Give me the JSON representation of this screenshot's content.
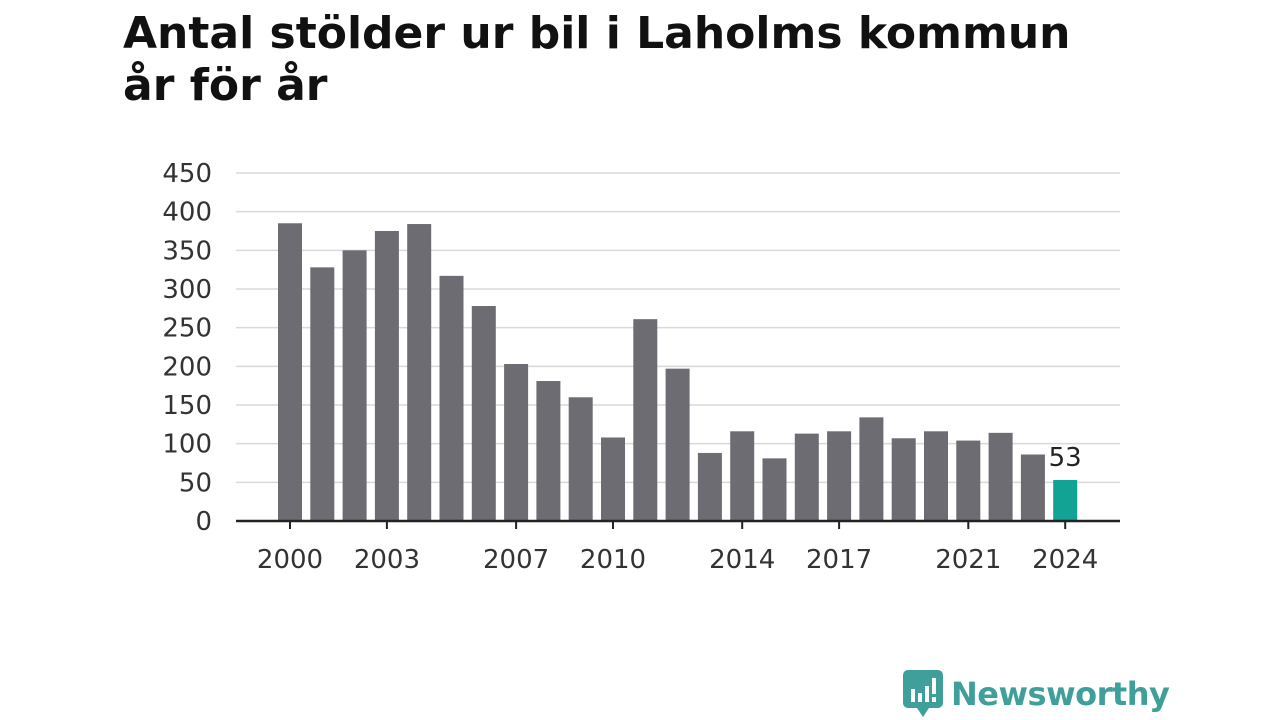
{
  "chart_data": {
    "type": "bar",
    "title_lines": [
      "Antal stölder ur bil i Laholms kommun",
      "år för år"
    ],
    "categories": [
      "2000",
      "2001",
      "2002",
      "2003",
      "2004",
      "2005",
      "2006",
      "2007",
      "2008",
      "2009",
      "2010",
      "2011",
      "2012",
      "2013",
      "2014",
      "2015",
      "2016",
      "2017",
      "2018",
      "2019",
      "2020",
      "2021",
      "2022",
      "2023",
      "2024"
    ],
    "values": [
      385,
      328,
      350,
      375,
      384,
      317,
      278,
      203,
      181,
      160,
      108,
      261,
      197,
      88,
      116,
      81,
      113,
      116,
      134,
      107,
      116,
      104,
      114,
      86,
      53
    ],
    "x_tick_labels": [
      "2000",
      "2003",
      "2007",
      "2010",
      "2014",
      "2017",
      "2021",
      "2024"
    ],
    "y_ticks": [
      0,
      50,
      100,
      150,
      200,
      250,
      300,
      350,
      400,
      450
    ],
    "ylim": [
      0,
      450
    ],
    "grid": true,
    "highlight": {
      "category": "2024",
      "label": "53"
    },
    "colors": {
      "bar": "#6d6c72",
      "highlight": "#13a394",
      "grid": "#d9d9d9",
      "axis": "#222222",
      "tick_text": "#333333"
    }
  },
  "branding": {
    "logo_text": "Newsworthy",
    "logo_icon": "newsworthy-chart-bubble-icon",
    "color": "#3f9f9a"
  }
}
